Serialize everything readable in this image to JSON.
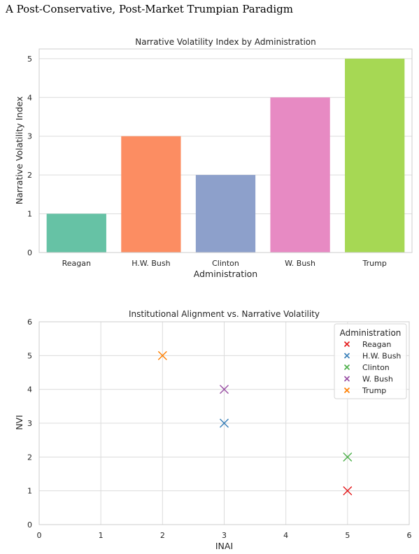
{
  "page": {
    "title": "A Post-Conservative, Post-Market Trumpian Paradigm"
  },
  "chart_data": [
    {
      "type": "bar",
      "title": "Narrative Volatility Index by Administration",
      "xlabel": "Administration",
      "ylabel": "Narrative Volatility Index",
      "categories": [
        "Reagan",
        "H.W. Bush",
        "Clinton",
        "W. Bush",
        "Trump"
      ],
      "values": [
        1,
        3,
        2,
        4,
        5
      ],
      "colors": [
        "#66c2a5",
        "#fc8d62",
        "#8da0cb",
        "#e78ac3",
        "#a6d854"
      ],
      "ylim": [
        0,
        5.25
      ],
      "yticks": [
        "0",
        "1",
        "2",
        "3",
        "4",
        "5"
      ],
      "grid": true
    },
    {
      "type": "scatter",
      "title": "Institutional Alignment vs. Narrative Volatility",
      "xlabel": "INAI",
      "ylabel": "NVI",
      "xlim": [
        0,
        6
      ],
      "ylim": [
        0,
        6
      ],
      "xticks": [
        "0",
        "1",
        "2",
        "3",
        "4",
        "5",
        "6"
      ],
      "yticks": [
        "0",
        "1",
        "2",
        "3",
        "4",
        "5",
        "6"
      ],
      "grid": true,
      "marker": "x",
      "legend": {
        "title": "Administration",
        "placement": "top-right"
      },
      "series": [
        {
          "name": "Reagan",
          "x": [
            5
          ],
          "y": [
            1
          ],
          "color": "#e41a1c"
        },
        {
          "name": "H.W. Bush",
          "x": [
            3
          ],
          "y": [
            3
          ],
          "color": "#377eb8"
        },
        {
          "name": "Clinton",
          "x": [
            5
          ],
          "y": [
            2
          ],
          "color": "#4daf4a"
        },
        {
          "name": "W. Bush",
          "x": [
            3
          ],
          "y": [
            4
          ],
          "color": "#984ea3"
        },
        {
          "name": "Trump",
          "x": [
            2
          ],
          "y": [
            5
          ],
          "color": "#ff7f00"
        }
      ]
    }
  ]
}
